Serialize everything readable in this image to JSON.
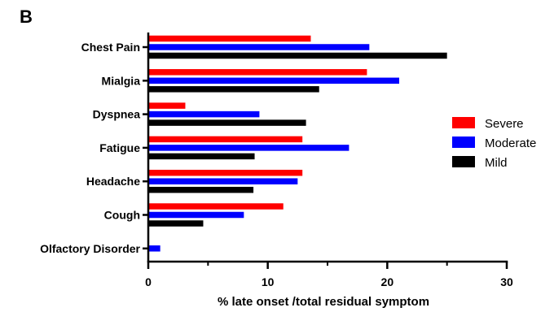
{
  "panel_label": "B",
  "chart_data": {
    "type": "bar",
    "orientation": "horizontal",
    "categories": [
      "Chest Pain",
      "Mialgia",
      "Dyspnea",
      "Fatigue",
      "Headache",
      "Cough",
      "Olfactory Disorder"
    ],
    "series": [
      {
        "name": "Severe",
        "color": "#ff0000",
        "values": [
          13.6,
          18.3,
          3.1,
          12.9,
          12.9,
          11.3,
          0
        ]
      },
      {
        "name": "Moderate",
        "color": "#0000ff",
        "values": [
          18.5,
          21.0,
          9.3,
          16.8,
          12.5,
          8.0,
          1.0
        ]
      },
      {
        "name": "Mild",
        "color": "#000000",
        "values": [
          25.0,
          14.3,
          13.2,
          8.9,
          8.8,
          4.6,
          0
        ]
      }
    ],
    "xlabel": "% late onset /total residual symptom",
    "ylabel": "",
    "xlim": [
      0,
      30
    ],
    "xticks": [
      "0",
      "10",
      "20",
      "30"
    ],
    "grid": false,
    "legend_position": "right"
  }
}
